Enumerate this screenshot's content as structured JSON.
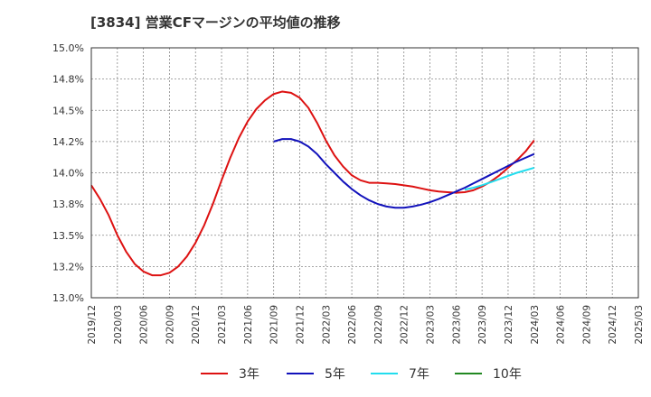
{
  "title": "[3834]  営業CFマージンの平均値の推移",
  "chart_data": {
    "type": "line",
    "ylim": [
      13.0,
      15.0
    ],
    "y_ticks": [
      "13.0%",
      "13.2%",
      "13.5%",
      "13.8%",
      "14.0%",
      "14.2%",
      "14.5%",
      "14.8%",
      "15.0%"
    ],
    "x_ticks": [
      "2019/12",
      "2020/03",
      "2020/06",
      "2020/09",
      "2020/12",
      "2021/03",
      "2021/06",
      "2021/09",
      "2021/12",
      "2022/03",
      "2022/06",
      "2022/09",
      "2022/12",
      "2023/03",
      "2023/06",
      "2023/09",
      "2023/12",
      "2024/03",
      "2024/06",
      "2024/09",
      "2024/12",
      "2025/03"
    ],
    "grid": true,
    "legend_position": "bottom",
    "series": [
      {
        "name": "3年",
        "color": "#dd1111",
        "x": [
          "2019/12",
          "2020/01",
          "2020/02",
          "2020/03",
          "2020/04",
          "2020/05",
          "2020/06",
          "2020/07",
          "2020/08",
          "2020/09",
          "2020/10",
          "2020/11",
          "2020/12",
          "2021/01",
          "2021/02",
          "2021/03",
          "2021/04",
          "2021/05",
          "2021/06",
          "2021/07",
          "2021/08",
          "2021/09",
          "2021/10",
          "2021/11",
          "2021/12",
          "2022/01",
          "2022/02",
          "2022/03",
          "2022/04",
          "2022/05",
          "2022/06",
          "2022/07",
          "2022/08",
          "2022/09",
          "2022/10",
          "2022/11",
          "2022/12",
          "2023/01",
          "2023/02",
          "2023/03",
          "2023/04",
          "2023/05",
          "2023/06",
          "2023/07",
          "2023/08",
          "2023/09",
          "2023/10",
          "2023/11",
          "2023/12",
          "2024/01",
          "2024/02",
          "2024/03"
        ],
        "y": [
          13.9,
          13.79,
          13.66,
          13.5,
          13.37,
          13.27,
          13.21,
          13.18,
          13.18,
          13.2,
          13.25,
          13.33,
          13.44,
          13.58,
          13.75,
          13.94,
          14.12,
          14.28,
          14.41,
          14.51,
          14.58,
          14.63,
          14.65,
          14.64,
          14.6,
          14.52,
          14.4,
          14.26,
          14.14,
          14.05,
          13.98,
          13.94,
          13.92,
          13.92,
          13.915,
          13.91,
          13.9,
          13.89,
          13.875,
          13.86,
          13.85,
          13.845,
          13.84,
          13.845,
          13.86,
          13.89,
          13.93,
          13.98,
          14.04,
          14.1,
          14.17,
          14.26
        ]
      },
      {
        "name": "5年",
        "color": "#1111bb",
        "x": [
          "2021/09",
          "2021/10",
          "2021/11",
          "2021/12",
          "2022/01",
          "2022/02",
          "2022/03",
          "2022/04",
          "2022/05",
          "2022/06",
          "2022/07",
          "2022/08",
          "2022/09",
          "2022/10",
          "2022/11",
          "2022/12",
          "2023/01",
          "2023/02",
          "2023/03",
          "2023/04",
          "2023/05",
          "2023/06",
          "2023/07",
          "2023/08",
          "2023/09",
          "2023/10",
          "2023/11",
          "2023/12",
          "2024/01",
          "2024/02",
          "2024/03"
        ],
        "y": [
          14.25,
          14.27,
          14.27,
          14.25,
          14.21,
          14.15,
          14.07,
          14.0,
          13.93,
          13.87,
          13.82,
          13.78,
          13.75,
          13.73,
          13.72,
          13.72,
          13.73,
          13.745,
          13.765,
          13.79,
          13.82,
          13.85,
          13.88,
          13.915,
          13.95,
          13.985,
          14.02,
          14.055,
          14.09,
          14.12,
          14.15
        ]
      },
      {
        "name": "7年",
        "color": "#22ddee",
        "x": [
          "2023/07",
          "2023/08",
          "2023/09",
          "2023/10",
          "2023/11",
          "2023/12",
          "2024/01",
          "2024/02",
          "2024/03"
        ],
        "y": [
          13.865,
          13.88,
          13.9,
          13.925,
          13.95,
          13.975,
          14.0,
          14.02,
          14.04
        ]
      },
      {
        "name": "10年",
        "color": "#228822",
        "x": [],
        "y": []
      }
    ]
  }
}
